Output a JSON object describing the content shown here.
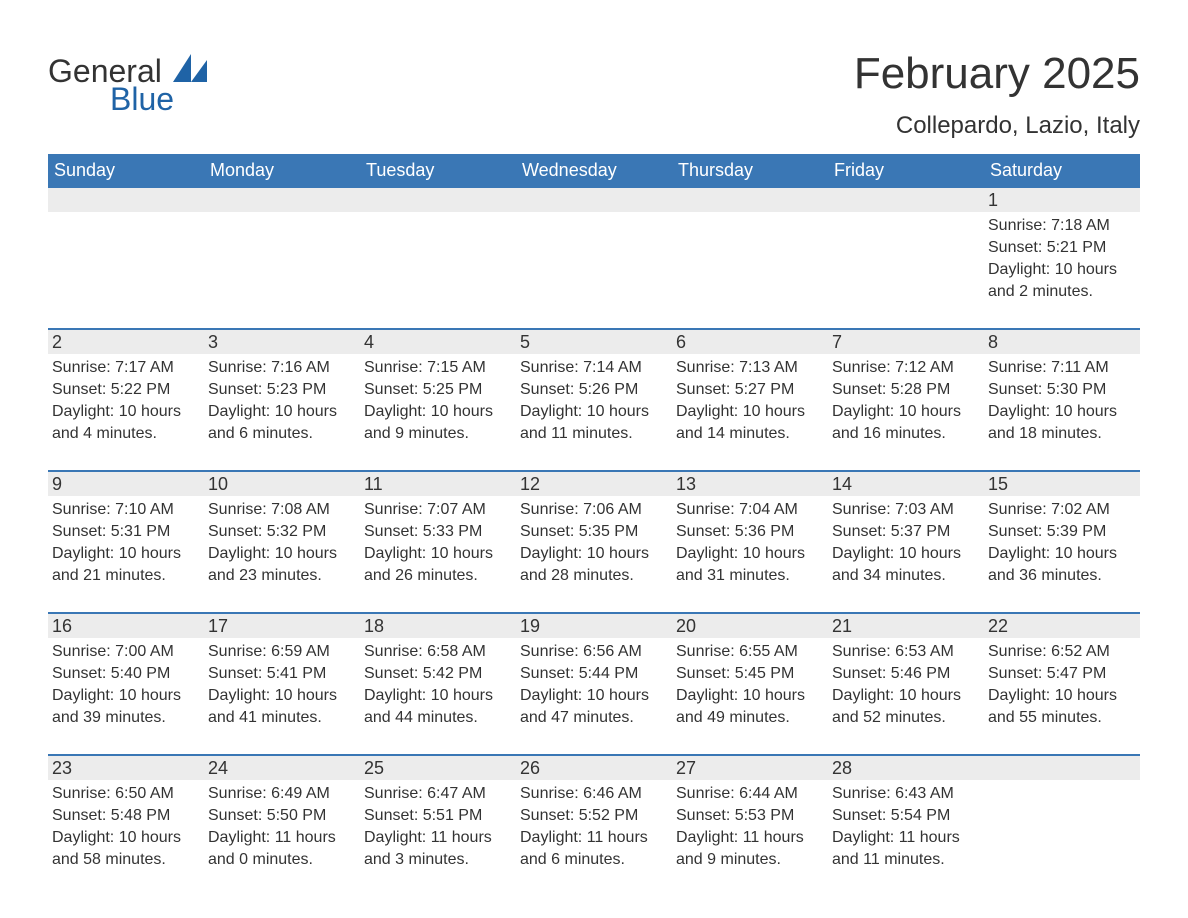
{
  "brand": {
    "word1": "General",
    "word2": "Blue",
    "text_color": "#1f63a6",
    "mark_color": "#1f63a6"
  },
  "header": {
    "month_title": "February 2025",
    "location": "Collepardo, Lazio, Italy"
  },
  "calendar": {
    "type": "table",
    "columns": [
      "Sunday",
      "Monday",
      "Tuesday",
      "Wednesday",
      "Thursday",
      "Friday",
      "Saturday"
    ],
    "header_bg": "#3a77b5",
    "header_fg": "#ffffff",
    "daynum_bg": "#ececec",
    "row_border_color": "#3a77b5",
    "text_color": "#333333",
    "body_fontsize": 16,
    "header_fontsize": 18,
    "title_fontsize": 44,
    "location_fontsize": 24,
    "weeks": [
      [
        null,
        null,
        null,
        null,
        null,
        null,
        {
          "n": "1",
          "sunrise": "Sunrise: 7:18 AM",
          "sunset": "Sunset: 5:21 PM",
          "day1": "Daylight: 10 hours",
          "day2": "and 2 minutes."
        }
      ],
      [
        {
          "n": "2",
          "sunrise": "Sunrise: 7:17 AM",
          "sunset": "Sunset: 5:22 PM",
          "day1": "Daylight: 10 hours",
          "day2": "and 4 minutes."
        },
        {
          "n": "3",
          "sunrise": "Sunrise: 7:16 AM",
          "sunset": "Sunset: 5:23 PM",
          "day1": "Daylight: 10 hours",
          "day2": "and 6 minutes."
        },
        {
          "n": "4",
          "sunrise": "Sunrise: 7:15 AM",
          "sunset": "Sunset: 5:25 PM",
          "day1": "Daylight: 10 hours",
          "day2": "and 9 minutes."
        },
        {
          "n": "5",
          "sunrise": "Sunrise: 7:14 AM",
          "sunset": "Sunset: 5:26 PM",
          "day1": "Daylight: 10 hours",
          "day2": "and 11 minutes."
        },
        {
          "n": "6",
          "sunrise": "Sunrise: 7:13 AM",
          "sunset": "Sunset: 5:27 PM",
          "day1": "Daylight: 10 hours",
          "day2": "and 14 minutes."
        },
        {
          "n": "7",
          "sunrise": "Sunrise: 7:12 AM",
          "sunset": "Sunset: 5:28 PM",
          "day1": "Daylight: 10 hours",
          "day2": "and 16 minutes."
        },
        {
          "n": "8",
          "sunrise": "Sunrise: 7:11 AM",
          "sunset": "Sunset: 5:30 PM",
          "day1": "Daylight: 10 hours",
          "day2": "and 18 minutes."
        }
      ],
      [
        {
          "n": "9",
          "sunrise": "Sunrise: 7:10 AM",
          "sunset": "Sunset: 5:31 PM",
          "day1": "Daylight: 10 hours",
          "day2": "and 21 minutes."
        },
        {
          "n": "10",
          "sunrise": "Sunrise: 7:08 AM",
          "sunset": "Sunset: 5:32 PM",
          "day1": "Daylight: 10 hours",
          "day2": "and 23 minutes."
        },
        {
          "n": "11",
          "sunrise": "Sunrise: 7:07 AM",
          "sunset": "Sunset: 5:33 PM",
          "day1": "Daylight: 10 hours",
          "day2": "and 26 minutes."
        },
        {
          "n": "12",
          "sunrise": "Sunrise: 7:06 AM",
          "sunset": "Sunset: 5:35 PM",
          "day1": "Daylight: 10 hours",
          "day2": "and 28 minutes."
        },
        {
          "n": "13",
          "sunrise": "Sunrise: 7:04 AM",
          "sunset": "Sunset: 5:36 PM",
          "day1": "Daylight: 10 hours",
          "day2": "and 31 minutes."
        },
        {
          "n": "14",
          "sunrise": "Sunrise: 7:03 AM",
          "sunset": "Sunset: 5:37 PM",
          "day1": "Daylight: 10 hours",
          "day2": "and 34 minutes."
        },
        {
          "n": "15",
          "sunrise": "Sunrise: 7:02 AM",
          "sunset": "Sunset: 5:39 PM",
          "day1": "Daylight: 10 hours",
          "day2": "and 36 minutes."
        }
      ],
      [
        {
          "n": "16",
          "sunrise": "Sunrise: 7:00 AM",
          "sunset": "Sunset: 5:40 PM",
          "day1": "Daylight: 10 hours",
          "day2": "and 39 minutes."
        },
        {
          "n": "17",
          "sunrise": "Sunrise: 6:59 AM",
          "sunset": "Sunset: 5:41 PM",
          "day1": "Daylight: 10 hours",
          "day2": "and 41 minutes."
        },
        {
          "n": "18",
          "sunrise": "Sunrise: 6:58 AM",
          "sunset": "Sunset: 5:42 PM",
          "day1": "Daylight: 10 hours",
          "day2": "and 44 minutes."
        },
        {
          "n": "19",
          "sunrise": "Sunrise: 6:56 AM",
          "sunset": "Sunset: 5:44 PM",
          "day1": "Daylight: 10 hours",
          "day2": "and 47 minutes."
        },
        {
          "n": "20",
          "sunrise": "Sunrise: 6:55 AM",
          "sunset": "Sunset: 5:45 PM",
          "day1": "Daylight: 10 hours",
          "day2": "and 49 minutes."
        },
        {
          "n": "21",
          "sunrise": "Sunrise: 6:53 AM",
          "sunset": "Sunset: 5:46 PM",
          "day1": "Daylight: 10 hours",
          "day2": "and 52 minutes."
        },
        {
          "n": "22",
          "sunrise": "Sunrise: 6:52 AM",
          "sunset": "Sunset: 5:47 PM",
          "day1": "Daylight: 10 hours",
          "day2": "and 55 minutes."
        }
      ],
      [
        {
          "n": "23",
          "sunrise": "Sunrise: 6:50 AM",
          "sunset": "Sunset: 5:48 PM",
          "day1": "Daylight: 10 hours",
          "day2": "and 58 minutes."
        },
        {
          "n": "24",
          "sunrise": "Sunrise: 6:49 AM",
          "sunset": "Sunset: 5:50 PM",
          "day1": "Daylight: 11 hours",
          "day2": "and 0 minutes."
        },
        {
          "n": "25",
          "sunrise": "Sunrise: 6:47 AM",
          "sunset": "Sunset: 5:51 PM",
          "day1": "Daylight: 11 hours",
          "day2": "and 3 minutes."
        },
        {
          "n": "26",
          "sunrise": "Sunrise: 6:46 AM",
          "sunset": "Sunset: 5:52 PM",
          "day1": "Daylight: 11 hours",
          "day2": "and 6 minutes."
        },
        {
          "n": "27",
          "sunrise": "Sunrise: 6:44 AM",
          "sunset": "Sunset: 5:53 PM",
          "day1": "Daylight: 11 hours",
          "day2": "and 9 minutes."
        },
        {
          "n": "28",
          "sunrise": "Sunrise: 6:43 AM",
          "sunset": "Sunset: 5:54 PM",
          "day1": "Daylight: 11 hours",
          "day2": "and 11 minutes."
        },
        null
      ]
    ]
  }
}
